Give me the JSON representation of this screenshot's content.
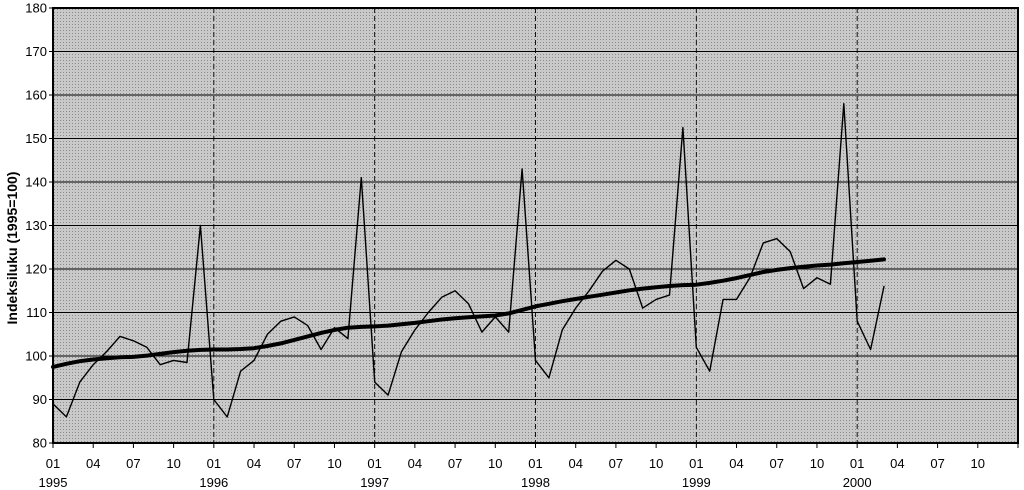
{
  "chart_data": {
    "type": "line",
    "title": "",
    "xlabel": "",
    "ylabel": "Indeksiluku (1995=100)",
    "ylim": [
      80,
      180
    ],
    "y_ticks": [
      80,
      90,
      100,
      110,
      120,
      130,
      140,
      150,
      160,
      170,
      180
    ],
    "grid": "on",
    "x_month_labels": [
      "01",
      "04",
      "07",
      "10",
      "01",
      "04",
      "07",
      "10",
      "01",
      "04",
      "07",
      "10",
      "01",
      "04",
      "07",
      "10",
      "01",
      "04",
      "07",
      "10",
      "01",
      "04",
      "07",
      "10"
    ],
    "x_year_labels": [
      "1995",
      "1996",
      "1997",
      "1998",
      "1999",
      "2000"
    ],
    "x_range_months": [
      "1995-01",
      "2000-12"
    ],
    "series": [
      {
        "values": [
          89,
          86,
          94,
          98,
          101,
          104.5,
          103.5,
          102,
          98,
          99,
          98.5,
          130,
          90,
          86,
          96.5,
          99,
          105,
          108,
          109,
          107,
          101.5,
          106.5,
          104,
          141,
          94,
          91,
          101,
          106,
          110,
          113.5,
          115,
          112,
          105.5,
          109,
          105.5,
          143,
          99,
          95,
          106,
          111,
          115,
          119.5,
          122,
          120,
          111,
          113,
          114,
          152.5,
          102,
          96.5,
          113,
          113,
          118,
          126,
          127,
          124,
          115.5,
          118,
          116.5,
          158,
          108,
          101.5,
          116
        ],
        "style": "thin"
      },
      {
        "values": [
          97.5,
          98.2,
          98.8,
          99.2,
          99.5,
          99.7,
          99.8,
          100.1,
          100.5,
          100.9,
          101.2,
          101.4,
          101.5,
          101.5,
          101.6,
          101.8,
          102.3,
          102.9,
          103.7,
          104.5,
          105.3,
          106.0,
          106.5,
          106.7,
          106.8,
          107.0,
          107.3,
          107.6,
          108.0,
          108.4,
          108.7,
          108.9,
          109.1,
          109.3,
          109.8,
          110.6,
          111.4,
          112.0,
          112.6,
          113.1,
          113.6,
          114.1,
          114.6,
          115.1,
          115.5,
          115.8,
          116.1,
          116.3,
          116.4,
          116.8,
          117.3,
          117.9,
          118.6,
          119.3,
          119.8,
          120.2,
          120.5,
          120.8,
          121.0,
          121.3,
          121.6,
          121.9,
          122.2
        ],
        "style": "thick"
      }
    ]
  }
}
